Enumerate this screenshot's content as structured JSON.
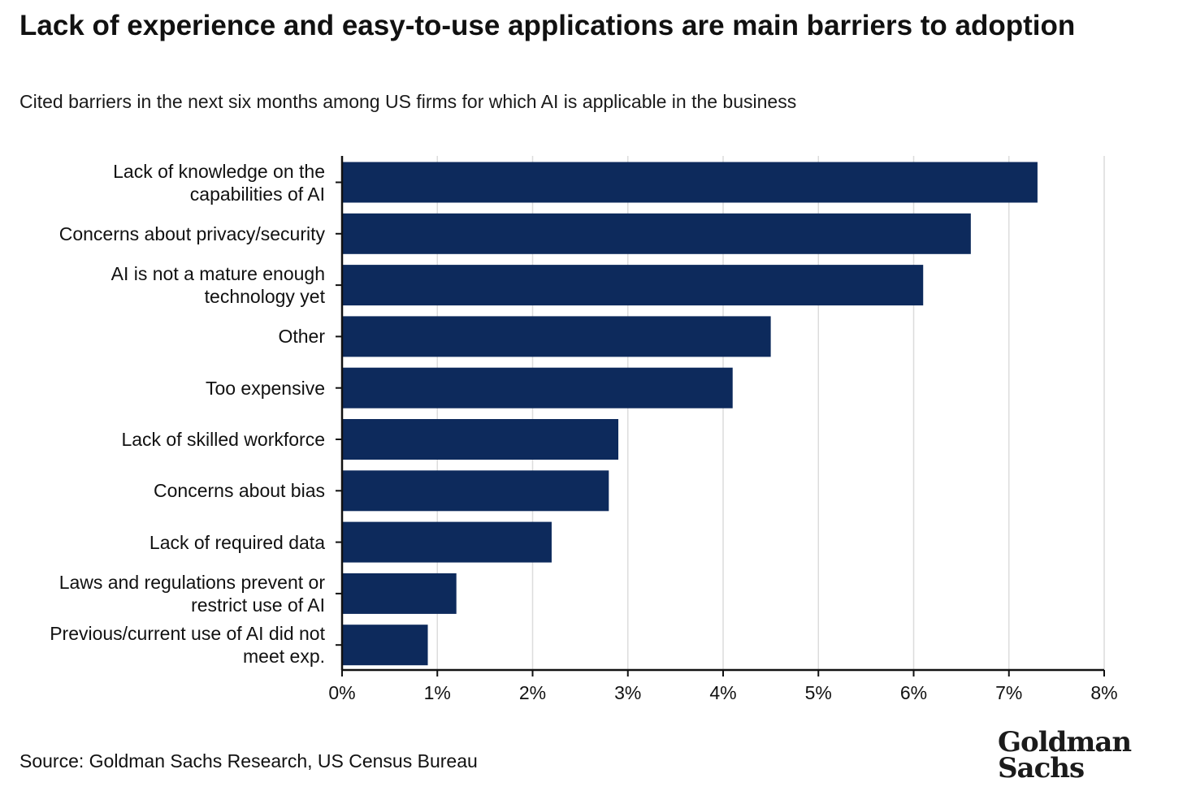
{
  "title": "Lack of experience and easy-to-use applications are main barriers to adoption",
  "subtitle": "Cited barriers in the next six months among US firms for which AI is applicable in the business",
  "source": "Source: Goldman Sachs Research, US Census Bureau",
  "logo": {
    "line1": "Goldman",
    "line2": "Sachs"
  },
  "colors": {
    "bar": "#0d2a5c",
    "grid": "#dcdcdc",
    "axis": "#111111",
    "text": "#111111"
  },
  "chart_data": {
    "type": "bar",
    "orientation": "horizontal",
    "title": "Lack of experience and easy-to-use applications are main barriers to adoption",
    "subtitle": "Cited barriers in the next six months among US firms for which AI is applicable in the business",
    "xlabel": "",
    "ylabel": "",
    "xlim": [
      0,
      8
    ],
    "x_ticks": [
      0,
      1,
      2,
      3,
      4,
      5,
      6,
      7,
      8
    ],
    "x_tick_labels": [
      "0%",
      "1%",
      "2%",
      "3%",
      "4%",
      "5%",
      "6%",
      "7%",
      "8%"
    ],
    "grid": true,
    "categories": [
      "Lack of knowledge on the capabilities of AI",
      "Concerns about privacy/security",
      "AI is not a mature enough technology yet",
      "Other",
      "Too expensive",
      "Lack of skilled workforce",
      "Concerns about bias",
      "Lack of required data",
      "Laws and regulations prevent or restrict use of AI",
      "Previous/current use of AI did not meet exp."
    ],
    "category_lines": [
      [
        "Lack of knowledge on the",
        "capabilities of AI"
      ],
      [
        "Concerns about privacy/security"
      ],
      [
        "AI is not a mature enough",
        "technology yet"
      ],
      [
        "Other"
      ],
      [
        "Too expensive"
      ],
      [
        "Lack of skilled workforce"
      ],
      [
        "Concerns about bias"
      ],
      [
        "Lack of required data"
      ],
      [
        "Laws and regulations prevent or",
        "restrict use of AI"
      ],
      [
        "Previous/current use of AI did not",
        "meet exp."
      ]
    ],
    "values": [
      7.3,
      6.6,
      6.1,
      4.5,
      4.1,
      2.9,
      2.8,
      2.2,
      1.2,
      0.9
    ],
    "units": "%"
  }
}
